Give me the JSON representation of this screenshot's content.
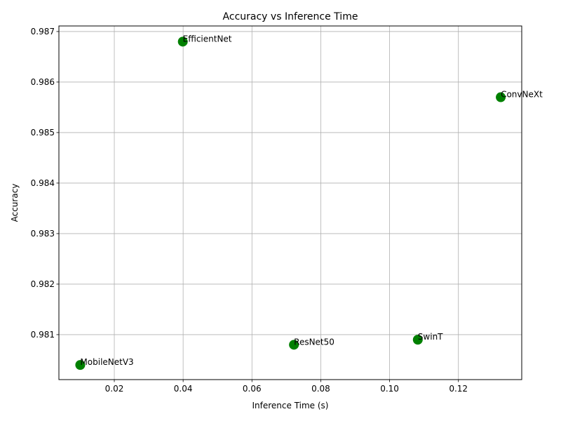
{
  "chart_data": {
    "type": "scatter",
    "title": "Accuracy vs Inference Time",
    "xlabel": "Inference Time (s)",
    "ylabel": "Accuracy",
    "xlim": [
      0.0039,
      0.1384
    ],
    "ylim": [
      0.98011,
      0.98711
    ],
    "xticks": [
      0.02,
      0.04,
      0.06,
      0.08,
      0.1,
      0.12
    ],
    "xtick_labels": [
      "0.02",
      "0.04",
      "0.06",
      "0.08",
      "0.10",
      "0.12"
    ],
    "yticks": [
      0.981,
      0.982,
      0.983,
      0.984,
      0.985,
      0.986,
      0.987
    ],
    "ytick_labels": [
      "0.981",
      "0.982",
      "0.983",
      "0.984",
      "0.985",
      "0.986",
      "0.987"
    ],
    "grid": true,
    "marker_color": "#008000",
    "points": [
      {
        "label": "EfficientNet",
        "x": 0.0399,
        "y": 0.9868
      },
      {
        "label": "ConvNeXt",
        "x": 0.1323,
        "y": 0.9857
      },
      {
        "label": "SwinT",
        "x": 0.1082,
        "y": 0.9809
      },
      {
        "label": "ResNet50",
        "x": 0.0722,
        "y": 0.9808
      },
      {
        "label": "MobileNetV3",
        "x": 0.0101,
        "y": 0.9804
      }
    ]
  }
}
